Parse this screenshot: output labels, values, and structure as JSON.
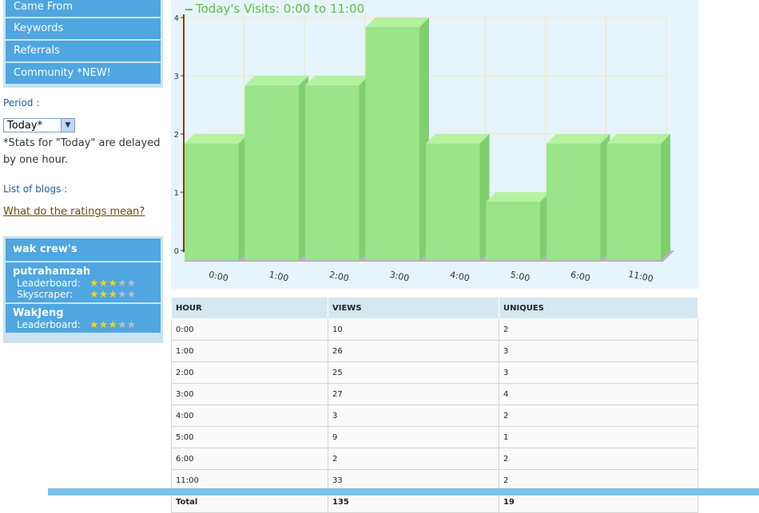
{
  "sidebar": {
    "items": [
      {
        "label": "Came From"
      },
      {
        "label": "Keywords"
      },
      {
        "label": "Referrals"
      },
      {
        "label": "Community *NEW!"
      }
    ],
    "period_label": "Period :",
    "period_value": "Today*",
    "delay_note": "*Stats for \"Today\" are delayed by one hour.",
    "list_label": "List of blogs :",
    "ratings_link": "What do the ratings mean?"
  },
  "crew": {
    "title": "wak crew's",
    "members": [
      {
        "name": "putrahamzah",
        "ratings": [
          {
            "label": "Leaderboard:",
            "stars": 3,
            "max": 5
          },
          {
            "label": "Skyscraper:",
            "stars": 3,
            "max": 5
          }
        ]
      },
      {
        "name": "WakJeng",
        "ratings": [
          {
            "label": "Leaderboard:",
            "stars": 3,
            "max": 5
          }
        ]
      }
    ]
  },
  "colors": {
    "nav": "#4fa6e0",
    "bar": "#9ae48a",
    "title": "#5ec13d"
  },
  "chart_data": {
    "type": "bar",
    "title": "Today's Visits: 0:00 to 11:00",
    "categories": [
      "0:00",
      "1:00",
      "2:00",
      "3:00",
      "4:00",
      "5:00",
      "6:00",
      "11:00"
    ],
    "values": [
      2,
      3,
      3,
      4,
      2,
      1,
      2,
      2
    ],
    "ylim": [
      0,
      4
    ],
    "yticks": [
      "0",
      "1",
      "2",
      "3",
      "4"
    ],
    "grid": true
  },
  "table": {
    "headers": [
      "HOUR",
      "VIEWS",
      "UNIQUES"
    ],
    "rows": [
      [
        "0:00",
        "10",
        "2"
      ],
      [
        "1:00",
        "26",
        "3"
      ],
      [
        "2:00",
        "25",
        "3"
      ],
      [
        "3:00",
        "27",
        "4"
      ],
      [
        "4:00",
        "3",
        "2"
      ],
      [
        "5:00",
        "9",
        "1"
      ],
      [
        "6:00",
        "2",
        "2"
      ],
      [
        "11:00",
        "33",
        "2"
      ]
    ],
    "total": [
      "Total",
      "135",
      "19"
    ]
  }
}
